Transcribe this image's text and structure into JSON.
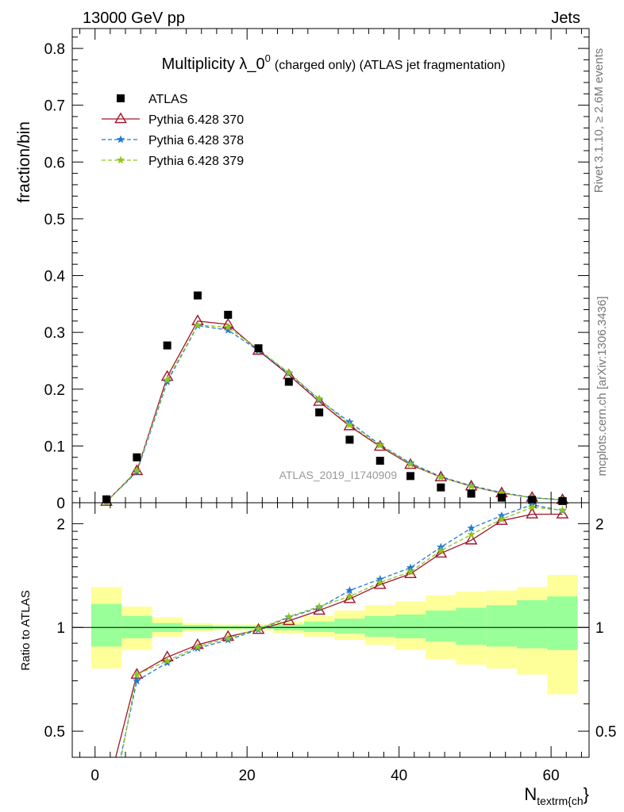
{
  "header": {
    "energy_label": "13000 GeV pp",
    "process_label": "Jets"
  },
  "side_labels": {
    "rivet": "Rivet 3.1.10, ≥ 2.6M events",
    "mcplots": "mcplots.cern.ch [arXiv:1306.3436]"
  },
  "analysis_id": "ATLAS_2019_I1740909",
  "chart_data": [
    {
      "type": "scatter",
      "panel": "main",
      "title_main": "Multiplicity λ_0",
      "title_sup": "0",
      "title_detail": "(charged only) (ATLAS jet fragmentation)",
      "ylabel": "fraction/bin",
      "xlim": [
        -3,
        65
      ],
      "ylim": [
        0,
        0.835
      ],
      "y_ticks": [
        0,
        0.1,
        0.2,
        0.3,
        0.4,
        0.5,
        0.6,
        0.7,
        0.8
      ],
      "y_tick_labels": [
        "0",
        "0.1",
        "0.2",
        "0.3",
        "0.4",
        "0.5",
        "0.6",
        "0.7",
        "0.8"
      ],
      "legend_position": "top-left",
      "x": [
        1.5,
        5.5,
        9.5,
        13.5,
        17.5,
        21.5,
        25.5,
        29.5,
        33.5,
        37.5,
        41.5,
        45.5,
        49.5,
        53.5,
        57.5,
        61.5
      ],
      "series": [
        {
          "name": "ATLAS",
          "color": "#000000",
          "marker": "square",
          "line": "none",
          "values": [
            0.006,
            0.08,
            0.277,
            0.365,
            0.331,
            0.272,
            0.213,
            0.159,
            0.111,
            0.074,
            0.047,
            0.027,
            0.016,
            0.009,
            0.005,
            0.003
          ]
        },
        {
          "name": "Pythia 6.428 370",
          "color": "#a0142a",
          "marker": "triangle",
          "line": "solid",
          "values": [
            0.002,
            0.056,
            0.222,
            0.32,
            0.314,
            0.268,
            0.225,
            0.178,
            0.135,
            0.099,
            0.067,
            0.045,
            0.029,
            0.017,
            0.009,
            0.005
          ]
        },
        {
          "name": "Pythia 6.428 378",
          "color": "#1f78d4",
          "marker": "star",
          "line": "dashed",
          "values": [
            0.002,
            0.054,
            0.213,
            0.312,
            0.304,
            0.268,
            0.228,
            0.181,
            0.142,
            0.102,
            0.07,
            0.046,
            0.03,
            0.018,
            0.009,
            0.005
          ]
        },
        {
          "name": "Pythia 6.428 379",
          "color": "#8fc41e",
          "marker": "star",
          "line": "dashed",
          "values": [
            0.001,
            0.057,
            0.216,
            0.313,
            0.309,
            0.27,
            0.229,
            0.183,
            0.137,
            0.101,
            0.068,
            0.045,
            0.029,
            0.017,
            0.009,
            0.005
          ]
        }
      ]
    },
    {
      "type": "line",
      "panel": "ratio",
      "ylabel": "Ratio to ATLAS",
      "xlabel_main": "N",
      "xlabel_sub": "textrm{ch",
      "xlabel_end": "}",
      "scale": "log",
      "xlim": [
        -3,
        65
      ],
      "ylim": [
        0.42,
        2.3
      ],
      "y_ticks": [
        0.5,
        1,
        2
      ],
      "y_tick_labels": [
        "0.5",
        "1",
        "2"
      ],
      "x_ticks": [
        0,
        20,
        40,
        60
      ],
      "x_tick_labels": [
        "0",
        "20",
        "40",
        "60"
      ],
      "x": [
        1.5,
        5.5,
        9.5,
        13.5,
        17.5,
        21.5,
        25.5,
        29.5,
        33.5,
        37.5,
        41.5,
        45.5,
        49.5,
        53.5,
        57.5,
        61.5
      ],
      "bin_edges": [
        -0.5,
        3.5,
        7.5,
        11.5,
        15.5,
        19.5,
        23.5,
        27.5,
        31.5,
        35.5,
        39.5,
        43.5,
        47.5,
        51.5,
        55.5,
        59.5,
        63.5
      ],
      "band_green": [
        [
          0.88,
          1.17
        ],
        [
          0.93,
          1.08
        ],
        [
          0.97,
          1.03
        ],
        [
          0.985,
          1.015
        ],
        [
          0.99,
          1.01
        ],
        [
          0.99,
          1.01
        ],
        [
          0.98,
          1.02
        ],
        [
          0.97,
          1.04
        ],
        [
          0.96,
          1.06
        ],
        [
          0.94,
          1.08
        ],
        [
          0.93,
          1.09
        ],
        [
          0.91,
          1.12
        ],
        [
          0.89,
          1.14
        ],
        [
          0.88,
          1.16
        ],
        [
          0.87,
          1.2
        ],
        [
          0.86,
          1.23
        ]
      ],
      "band_yellow": [
        [
          0.76,
          1.31
        ],
        [
          0.86,
          1.15
        ],
        [
          0.94,
          1.07
        ],
        [
          0.97,
          1.03
        ],
        [
          0.98,
          1.02
        ],
        [
          0.98,
          1.02
        ],
        [
          0.96,
          1.04
        ],
        [
          0.94,
          1.08
        ],
        [
          0.92,
          1.12
        ],
        [
          0.89,
          1.16
        ],
        [
          0.86,
          1.19
        ],
        [
          0.81,
          1.24
        ],
        [
          0.78,
          1.27
        ],
        [
          0.76,
          1.28
        ],
        [
          0.73,
          1.31
        ],
        [
          0.64,
          1.42
        ]
      ],
      "series": [
        {
          "name": "Pythia 6.428 370",
          "color": "#a0142a",
          "marker": "triangle",
          "line": "solid",
          "values": [
            0.33,
            0.73,
            0.82,
            0.89,
            0.94,
            0.985,
            1.045,
            1.12,
            1.21,
            1.33,
            1.43,
            1.64,
            1.79,
            2.04,
            2.13,
            2.13
          ]
        },
        {
          "name": "Pythia 6.428 378",
          "color": "#1f78d4",
          "marker": "star",
          "line": "dashed",
          "values": [
            0.27,
            0.7,
            0.79,
            0.87,
            0.92,
            0.985,
            1.07,
            1.14,
            1.28,
            1.38,
            1.49,
            1.71,
            1.94,
            2.11,
            2.27,
            2.18
          ]
        },
        {
          "name": "Pythia 6.428 379",
          "color": "#8fc41e",
          "marker": "star",
          "line": "dashed",
          "values": [
            0.25,
            0.73,
            0.8,
            0.88,
            0.93,
            0.99,
            1.075,
            1.15,
            1.23,
            1.35,
            1.45,
            1.67,
            1.86,
            2.06,
            2.23,
            2.19
          ]
        }
      ]
    }
  ]
}
